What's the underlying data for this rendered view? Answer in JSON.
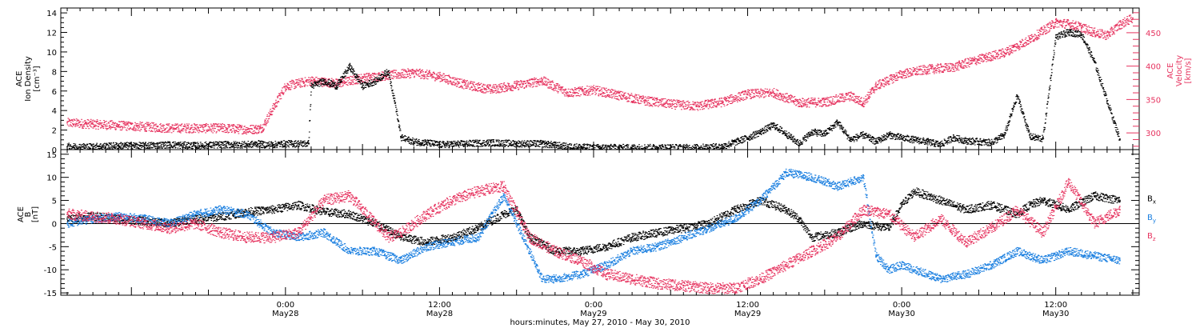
{
  "chart_data": [
    {
      "type": "scatter",
      "panel": "top",
      "y_label_lines": [
        "ACE",
        "Ion Density",
        "[cm⁻³]"
      ],
      "y2_label_lines": [
        "ACE",
        "Velocity",
        "[km/s]"
      ],
      "xlim_hours": [
        -17.5,
        66.5
      ],
      "ylim": [
        0,
        14.5
      ],
      "y_ticks": [
        0,
        2,
        4,
        6,
        8,
        10,
        12,
        14
      ],
      "y2lim": [
        275,
        487
      ],
      "y2_ticks": [
        300,
        350,
        400,
        450
      ],
      "grid": false,
      "series": [
        {
          "color": "#000000",
          "x": [
            -17,
            -15,
            -13,
            -11,
            -9,
            -7,
            -5,
            -3,
            -2,
            -1.8,
            -1,
            0,
            1,
            1.8,
            2,
            3,
            4,
            5,
            6,
            7,
            8,
            8.5,
            9,
            10,
            11,
            12,
            14,
            16,
            18,
            20,
            22,
            24,
            26,
            28,
            30,
            32,
            34,
            36,
            37,
            38,
            39,
            40,
            41,
            42,
            43,
            44,
            45,
            46,
            47,
            48,
            49,
            50,
            51,
            52,
            53,
            54,
            55,
            56,
            57,
            58,
            59,
            60,
            61,
            62,
            63,
            64,
            65
          ],
          "values": [
            0.3,
            0.3,
            0.4,
            0.4,
            0.5,
            0.4,
            0.5,
            0.5,
            0.6,
            0.5,
            0.5,
            0.6,
            0.6,
            0.6,
            6.5,
            7,
            6.5,
            8.5,
            6.5,
            7,
            8,
            5,
            1.2,
            0.8,
            0.7,
            0.5,
            0.6,
            0.7,
            0.6,
            0.6,
            0.3,
            0.2,
            0.2,
            0.2,
            0.2,
            0.2,
            0.3,
            1.2,
            1.8,
            2.5,
            1.6,
            0.6,
            1.8,
            1.6,
            2.8,
            1,
            1.5,
            0.8,
            1.5,
            1.2,
            1,
            0.8,
            0.5,
            1.2,
            0.9,
            0.8,
            0.7,
            1.5,
            5.5,
            1.3,
            1.1,
            11.5,
            12,
            11.8,
            9,
            5,
            1
          ]
        }
      ],
      "series_y2": [
        {
          "color": "#e6335f",
          "x": [
            -17,
            -15,
            -13,
            -11,
            -9,
            -7,
            -5,
            -3,
            -2,
            -1.8,
            0,
            2,
            4,
            6,
            8,
            10,
            12,
            14,
            16,
            18,
            20,
            22,
            24,
            26,
            28,
            30,
            32,
            34,
            36,
            38,
            40,
            42,
            44,
            45,
            46,
            48,
            50,
            52,
            54,
            56,
            58,
            60,
            61,
            62,
            63,
            64,
            65,
            66
          ],
          "values": [
            315,
            313,
            311,
            309,
            307,
            307,
            307,
            305,
            306,
            308,
            370,
            378,
            374,
            382,
            386,
            390,
            384,
            372,
            365,
            371,
            378,
            360,
            364,
            356,
            348,
            343,
            340,
            346,
            358,
            360,
            345,
            346,
            355,
            345,
            370,
            388,
            395,
            398,
            410,
            420,
            440,
            465,
            463,
            458,
            450,
            446,
            462,
            472
          ]
        }
      ]
    },
    {
      "type": "scatter",
      "panel": "bottom",
      "y_label_lines": [
        "ACE",
        "B",
        "[nT]"
      ],
      "xlim_hours": [
        -17.5,
        66.5
      ],
      "ylim": [
        -15.5,
        16
      ],
      "y_ticks": [
        -15,
        -10,
        -5,
        0,
        5,
        10,
        15
      ],
      "zero_line": true,
      "legend": [
        "Bx",
        "By",
        "Bz"
      ],
      "legend_position": "right",
      "x_tick_labels": [
        {
          "hour": 0,
          "time": "0:00",
          "date": "May28"
        },
        {
          "hour": 12,
          "time": "12:00",
          "date": "May28"
        },
        {
          "hour": 24,
          "time": "0:00",
          "date": "May29"
        },
        {
          "hour": 36,
          "time": "12:00",
          "date": "May29"
        },
        {
          "hour": 48,
          "time": "0:00",
          "date": "May30"
        },
        {
          "hour": 60,
          "time": "12:00",
          "date": "May30"
        }
      ],
      "x_label": "hours:minutes, May 27, 2010 - May 30, 2010",
      "series": [
        {
          "name": "Bx",
          "color": "#000000",
          "x": [
            -17,
            -15,
            -13,
            -11,
            -9,
            -7,
            -5,
            -4,
            -3,
            -1,
            1,
            3,
            5,
            7,
            9,
            11,
            13,
            15,
            17,
            18,
            19,
            21,
            23,
            25,
            27,
            29,
            31,
            33,
            35,
            37,
            39,
            40,
            41,
            43,
            45,
            47,
            48,
            49,
            51,
            53,
            55,
            57,
            58,
            59,
            61,
            63,
            65
          ],
          "values": [
            1,
            1.5,
            1,
            0.5,
            0,
            1,
            1.5,
            2,
            2.5,
            3,
            4,
            2.5,
            2,
            0,
            -3,
            -4,
            -3,
            -1,
            2,
            3,
            -3,
            -6,
            -6,
            -5,
            -3,
            -2,
            -1,
            0,
            3,
            5,
            3,
            1,
            -3,
            -2,
            0,
            -1,
            4,
            7,
            5,
            3,
            4,
            2,
            4,
            5,
            3,
            6,
            5
          ]
        },
        {
          "name": "By",
          "color": "#1a7fe0",
          "x": [
            -17,
            -15,
            -13,
            -11,
            -9,
            -7,
            -5,
            -3,
            -1,
            1,
            3,
            5,
            7,
            9,
            11,
            13,
            15,
            17,
            19,
            20,
            21,
            23,
            25,
            27,
            29,
            31,
            33,
            35,
            37,
            39,
            41,
            43,
            45,
            46,
            47,
            48,
            49,
            51,
            53,
            55,
            57,
            59,
            61,
            63,
            65
          ],
          "values": [
            0,
            1,
            1.5,
            1,
            0,
            2,
            3,
            2,
            -2,
            -3,
            -2,
            -6,
            -6,
            -8,
            -5,
            -4,
            -3,
            6,
            -6,
            -12,
            -12,
            -11,
            -9,
            -6,
            -5,
            -3,
            -1,
            1,
            5,
            11,
            10,
            8,
            10,
            -7,
            -10,
            -9,
            -10,
            -12,
            -11,
            -9,
            -6,
            -8,
            -6,
            -7,
            -8
          ]
        },
        {
          "name": "Bz",
          "color": "#e6335f",
          "x": [
            -17,
            -15,
            -13,
            -11,
            -9,
            -7,
            -5,
            -3,
            -1,
            1,
            3,
            5,
            7,
            8,
            9,
            11,
            13,
            15,
            17,
            19,
            21,
            23,
            25,
            27,
            29,
            31,
            33,
            35,
            37,
            39,
            41,
            43,
            45,
            47,
            49,
            51,
            53,
            55,
            57,
            59,
            61,
            63,
            65
          ],
          "values": [
            2,
            1.5,
            1,
            0,
            -1,
            0,
            -2,
            -3,
            -3,
            -2,
            5,
            6,
            0,
            -3,
            -2,
            2,
            5,
            7,
            8,
            -3,
            -6,
            -8,
            -11,
            -12,
            -13,
            -13.5,
            -14,
            -14,
            -12,
            -9,
            -6,
            -3,
            3,
            2,
            -3,
            1,
            -4,
            -1,
            3,
            -2,
            9,
            0,
            3
          ]
        }
      ]
    }
  ]
}
